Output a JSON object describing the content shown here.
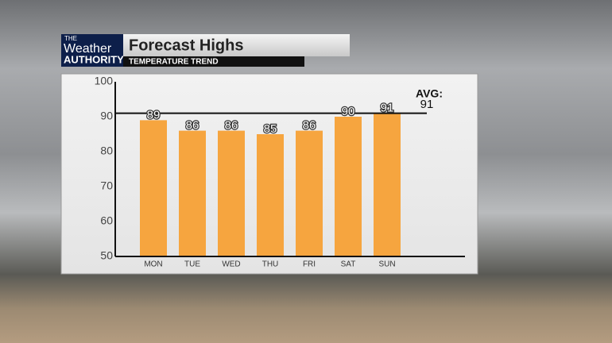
{
  "brand": {
    "top": "THE",
    "middle": "Weather",
    "bottom": "AUTHORITY"
  },
  "chart_data": {
    "type": "bar",
    "title": "Forecast Highs",
    "subtitle": "TEMPERATURE TREND",
    "categories": [
      "MON",
      "TUE",
      "WED",
      "THU",
      "FRI",
      "SAT",
      "SUN"
    ],
    "values": [
      89,
      86,
      86,
      85,
      86,
      90,
      91
    ],
    "color": "#f6a53f",
    "ylim": [
      50,
      100
    ],
    "yticks": [
      50,
      60,
      70,
      80,
      90,
      100
    ],
    "average": {
      "label": "AVG:",
      "value": 91
    }
  }
}
